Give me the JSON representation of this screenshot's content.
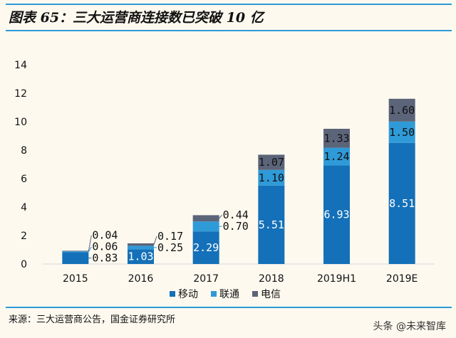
{
  "header": {
    "title": "图表 65：三大运营商连接数已突破 10 亿"
  },
  "footer": {
    "source": "来源：三大运营商公告，国金证券研究所",
    "watermark": "头条 @未来智库"
  },
  "chart_data": {
    "type": "bar",
    "stacked": true,
    "categories": [
      "2015",
      "2016",
      "2017",
      "2018",
      "2019H1",
      "2019E"
    ],
    "series": [
      {
        "name": "移动",
        "color": "#1470b8",
        "values": [
          0.83,
          1.03,
          2.29,
          5.51,
          6.93,
          8.51
        ],
        "label_color": "#ffffff"
      },
      {
        "name": "联通",
        "color": "#2f9ad8",
        "values": [
          0.06,
          0.25,
          0.7,
          1.1,
          1.24,
          1.5
        ],
        "label_color": "#111111"
      },
      {
        "name": "电信",
        "color": "#5b6478",
        "values": [
          0.04,
          0.17,
          0.44,
          1.07,
          1.33,
          1.6
        ],
        "label_color": "#111111"
      }
    ],
    "data_labels": [
      [
        "0.83",
        "1.03",
        "2.29",
        "5.51",
        "6.93",
        "8.51"
      ],
      [
        "0.06",
        "0.25",
        "0.70",
        "1.10",
        "1.24",
        "1.50"
      ],
      [
        "0.04",
        "0.17",
        "0.44",
        "1.07",
        "1.33",
        "1.60"
      ]
    ],
    "ylim": [
      0,
      14
    ],
    "yticks": [
      "0",
      "2",
      "4",
      "6",
      "8",
      "10",
      "12",
      "14"
    ],
    "grid": false,
    "legend": "bottom"
  }
}
